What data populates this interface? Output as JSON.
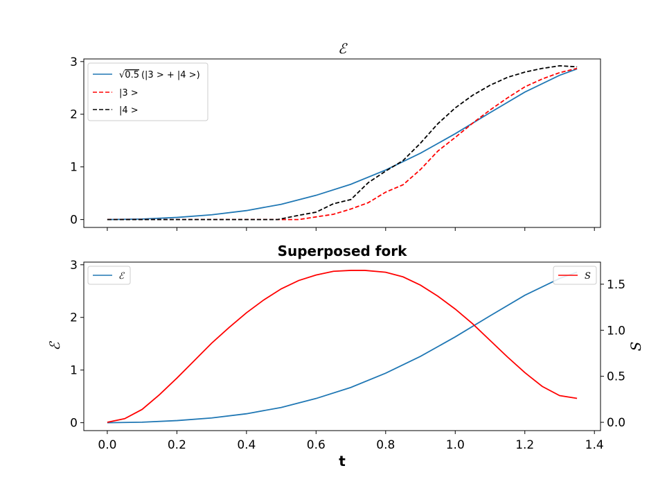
{
  "chart_data": [
    {
      "type": "line",
      "title": "ℰ",
      "ylim": [
        -0.15,
        3.05
      ],
      "xlim": [
        -0.0675,
        1.4175
      ],
      "yticks": [
        0,
        1,
        2,
        3
      ],
      "ytick_labels": [
        "0",
        "1",
        "2",
        "3"
      ],
      "xticks": [
        0.0,
        0.2,
        0.4,
        0.6,
        0.8,
        1.0,
        1.2,
        1.4
      ],
      "xtick_labels": [],
      "grid": false,
      "legend_position": "top-left",
      "series": [
        {
          "name": "√0.5 (|3 > + |4 >)",
          "legend_sqrt": "0.5",
          "legend_rest": "(|3 > + |4 >)",
          "color": "#1f77b4",
          "style": "solid",
          "x": [
            0.0,
            0.1,
            0.2,
            0.3,
            0.4,
            0.5,
            0.6,
            0.7,
            0.8,
            0.9,
            1.0,
            1.1,
            1.2,
            1.3,
            1.35
          ],
          "y": [
            0.0,
            0.01,
            0.04,
            0.09,
            0.17,
            0.29,
            0.46,
            0.67,
            0.94,
            1.26,
            1.63,
            2.03,
            2.42,
            2.74,
            2.86
          ]
        },
        {
          "name": "|3 >",
          "color": "#ff0000",
          "style": "dashed",
          "x": [
            0.0,
            0.45,
            0.55,
            0.6,
            0.65,
            0.7,
            0.75,
            0.8,
            0.85,
            0.9,
            0.95,
            1.0,
            1.05,
            1.1,
            1.15,
            1.2,
            1.25,
            1.3,
            1.35
          ],
          "y": [
            0.0,
            0.0,
            0.0,
            0.05,
            0.1,
            0.2,
            0.32,
            0.52,
            0.66,
            0.95,
            1.3,
            1.56,
            1.83,
            2.08,
            2.31,
            2.52,
            2.67,
            2.79,
            2.87
          ]
        },
        {
          "name": "|4 >",
          "color": "#000000",
          "style": "dashed",
          "x": [
            0.0,
            0.4,
            0.49,
            0.55,
            0.6,
            0.65,
            0.7,
            0.75,
            0.8,
            0.85,
            0.9,
            0.95,
            1.0,
            1.05,
            1.1,
            1.15,
            1.2,
            1.25,
            1.3,
            1.35
          ],
          "y": [
            0.0,
            0.0,
            0.0,
            0.08,
            0.14,
            0.3,
            0.38,
            0.7,
            0.92,
            1.12,
            1.45,
            1.82,
            2.12,
            2.36,
            2.55,
            2.7,
            2.8,
            2.87,
            2.92,
            2.9
          ]
        }
      ]
    },
    {
      "type": "line",
      "title": "Superposed fork",
      "xlabel": "t",
      "ylabel_left": "ℰ",
      "ylabel_right": "S",
      "ylim_left": [
        -0.15,
        3.05
      ],
      "ylim_right": [
        -0.09,
        1.74
      ],
      "xlim": [
        -0.0675,
        1.4175
      ],
      "yticks_left": [
        0,
        1,
        2,
        3
      ],
      "ytick_labels_left": [
        "0",
        "1",
        "2",
        "3"
      ],
      "yticks_right": [
        0.0,
        0.5,
        1.0,
        1.5
      ],
      "ytick_labels_right": [
        "0.0",
        "0.5",
        "1.0",
        "1.5"
      ],
      "xticks": [
        0.0,
        0.2,
        0.4,
        0.6,
        0.8,
        1.0,
        1.2,
        1.4
      ],
      "xtick_labels": [
        "0.0",
        "0.2",
        "0.4",
        "0.6",
        "0.8",
        "1.0",
        "1.2",
        "1.4"
      ],
      "grid": false,
      "series": [
        {
          "name": "ℰ",
          "axis": "left",
          "color": "#1f77b4",
          "style": "solid",
          "legend_position": "top-left",
          "x": [
            0.0,
            0.1,
            0.2,
            0.3,
            0.4,
            0.5,
            0.6,
            0.7,
            0.8,
            0.9,
            1.0,
            1.1,
            1.2,
            1.3,
            1.35
          ],
          "y": [
            0.0,
            0.01,
            0.04,
            0.09,
            0.17,
            0.29,
            0.46,
            0.67,
            0.94,
            1.26,
            1.63,
            2.03,
            2.42,
            2.74,
            2.86
          ]
        },
        {
          "name": "S",
          "axis": "right",
          "color": "#ff0000",
          "style": "solid",
          "legend_position": "top-right",
          "x": [
            0.0,
            0.05,
            0.1,
            0.15,
            0.2,
            0.25,
            0.3,
            0.35,
            0.4,
            0.45,
            0.5,
            0.55,
            0.6,
            0.65,
            0.7,
            0.74,
            0.8,
            0.85,
            0.9,
            0.95,
            1.0,
            1.05,
            1.1,
            1.15,
            1.2,
            1.25,
            1.3,
            1.35
          ],
          "y": [
            0.0,
            0.04,
            0.14,
            0.3,
            0.48,
            0.67,
            0.86,
            1.03,
            1.19,
            1.33,
            1.45,
            1.54,
            1.6,
            1.64,
            1.65,
            1.65,
            1.63,
            1.58,
            1.49,
            1.37,
            1.23,
            1.07,
            0.89,
            0.71,
            0.54,
            0.39,
            0.29,
            0.26
          ]
        }
      ]
    }
  ]
}
